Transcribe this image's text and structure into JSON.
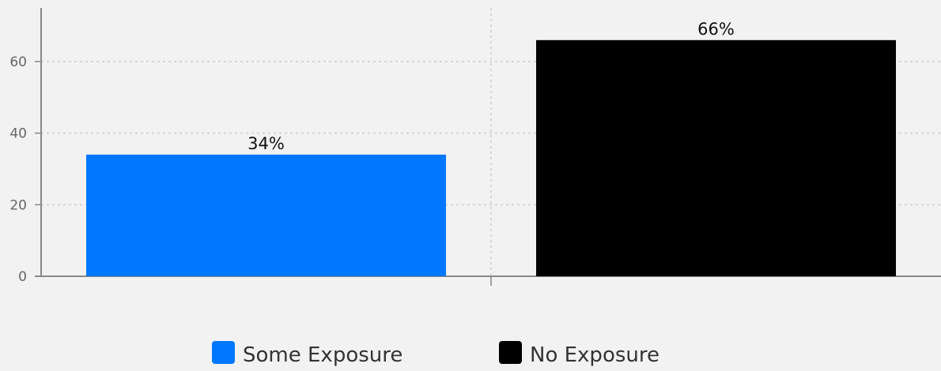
{
  "chart_data": {
    "type": "bar",
    "title": "",
    "xlabel": "",
    "ylabel": "",
    "categories": [
      "Some Exposure",
      "No Exposure"
    ],
    "values": [
      34,
      66
    ],
    "value_labels": [
      "34%",
      "66%"
    ],
    "colors": [
      "#0077ff",
      "#000000"
    ],
    "ylim": [
      0,
      75
    ],
    "yticks": [
      0,
      20,
      40,
      60
    ],
    "grid": true,
    "legend_position": "bottom-center",
    "legend": [
      {
        "label": "Some Exposure",
        "color": "#0077ff"
      },
      {
        "label": "No Exposure",
        "color": "#000000"
      }
    ]
  }
}
